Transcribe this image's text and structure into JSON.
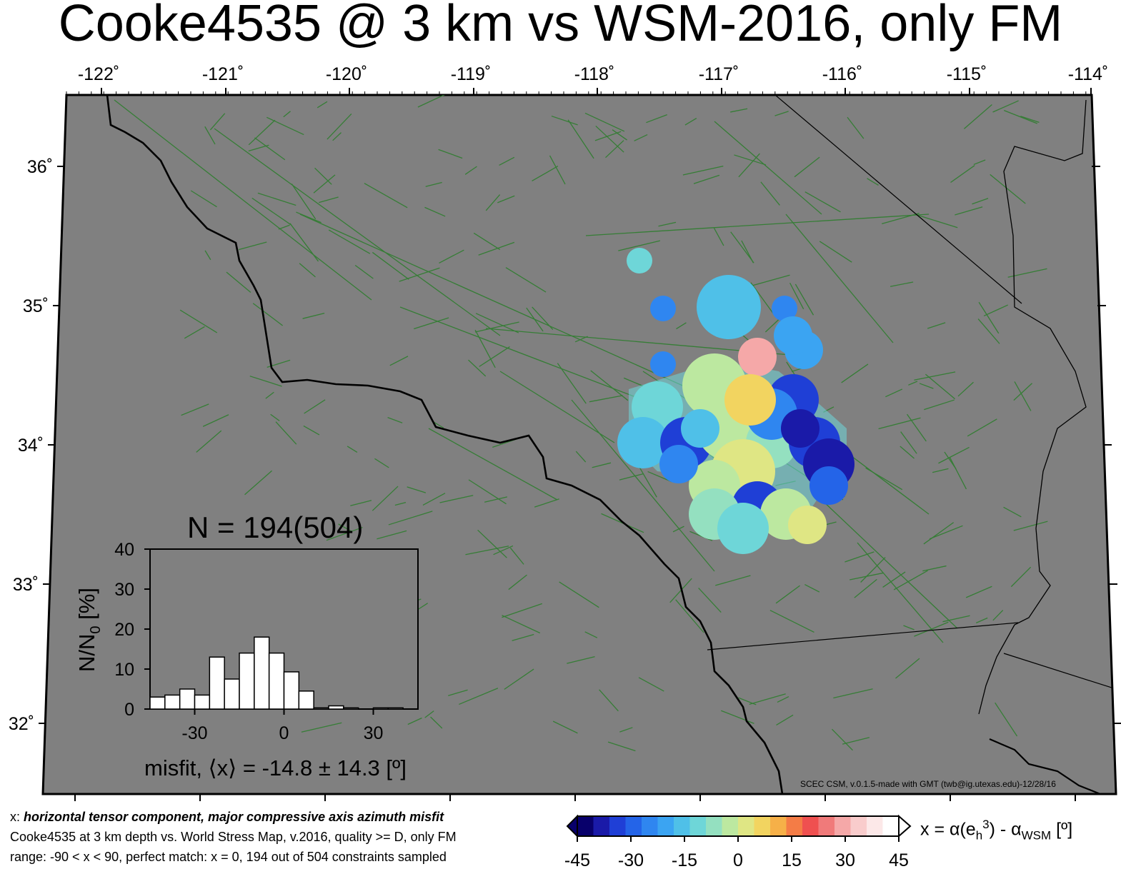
{
  "title": "Cooke4535 @ 3 km vs WSM-2016, only FM",
  "map": {
    "lon_ticks": [
      "-122˚",
      "-121˚",
      "-120˚",
      "-119˚",
      "-118˚",
      "-117˚",
      "-116˚",
      "-115˚",
      "-114˚"
    ],
    "lat_ticks": [
      "36˚",
      "35˚",
      "34˚",
      "33˚",
      "32˚"
    ],
    "land_color": "#808080",
    "fault_color": "#2e7d2e",
    "coast_color": "#000000"
  },
  "histogram": {
    "title": "N = 194(504)",
    "ylabel": "N/N",
    "ylabel_sub": "0",
    "ylabel_unit": " [%]",
    "xlabel": "misfit, ⟨x⟩ = -14.8 ± 14.3 [º]",
    "y_ticks": [
      "0",
      "10",
      "20",
      "30",
      "40"
    ],
    "x_ticks": [
      "-30",
      "0",
      "30"
    ]
  },
  "chart_data": {
    "type": "bar",
    "title": "N = 194(504)",
    "xlabel": "misfit, ⟨x⟩ = -14.8 ± 14.3 [º]",
    "ylabel": "N/N0 [%]",
    "xlim": [
      -45,
      45
    ],
    "ylim": [
      0,
      40
    ],
    "bin_width": 5,
    "bin_edges_start": [
      -45,
      -40,
      -35,
      -30,
      -25,
      -20,
      -15,
      -10,
      -5,
      0,
      5,
      10,
      15,
      20,
      25,
      30,
      35,
      40
    ],
    "values": [
      3,
      3.5,
      5,
      3.5,
      13,
      7.5,
      14,
      18,
      14,
      9.3,
      4.5,
      0.3,
      0.8,
      0.3,
      0,
      0.3,
      0.3,
      0
    ]
  },
  "colorbar": {
    "ticks": [
      "-45",
      "-30",
      "-15",
      "0",
      "15",
      "30",
      "45"
    ],
    "label_main": "x = α(e",
    "label_sub1": "h",
    "label_sup": "3",
    "label_mid": ") - α",
    "label_sub2": "WSM",
    "label_end": " [º]",
    "colors": [
      "#08006b",
      "#1a1aa8",
      "#1f3fd6",
      "#2464e8",
      "#2f86f0",
      "#3ba4f2",
      "#4fc0e8",
      "#6ed6d8",
      "#94e0c0",
      "#bce8a0",
      "#dfe684",
      "#f2d460",
      "#f6b048",
      "#f47c46",
      "#ef5050",
      "#f07a7a",
      "#f5a8a8",
      "#f9cccc",
      "#fce8e8",
      "#ffffff"
    ]
  },
  "footer": {
    "line1_prefix": "x: ",
    "line1": "horizontal tensor component, major compressive axis azimuth misfit",
    "line2": "Cooke4535 at 3 km depth vs.  World Stress Map, v.2016, quality >= D, only FM",
    "line3": "range: -90 < x < 90, perfect match: x = 0, 194 out of 504 constraints sampled"
  },
  "credit": "SCEC CSM, v.0.1.5-made with GMT (twb@ig.utexas.edu)-12/28/16"
}
